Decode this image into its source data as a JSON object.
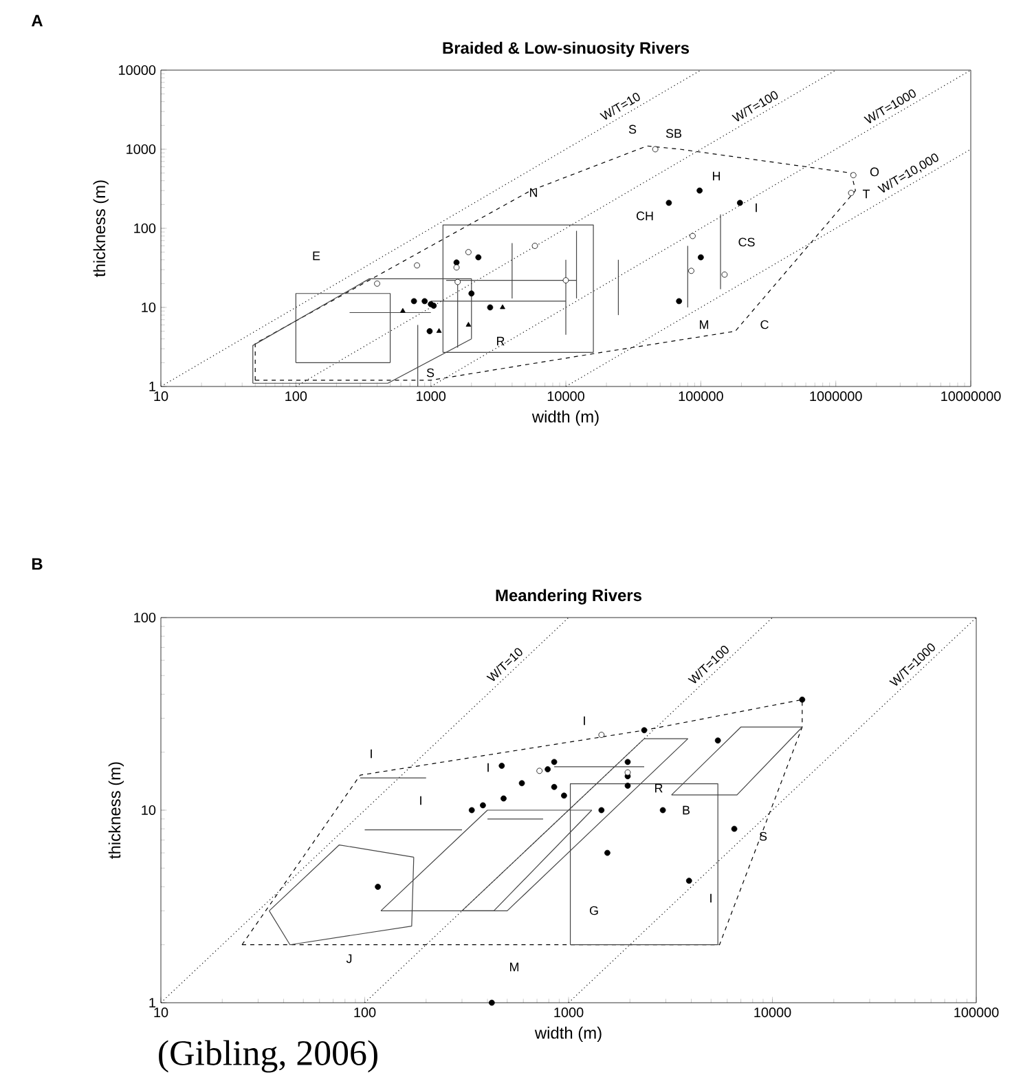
{
  "chart_data": [
    {
      "type": "scatter",
      "title": "Braided & Low-sinuosity Rivers",
      "xlabel": "width (m)",
      "ylabel": "thickness (m)",
      "log": "xy",
      "xlim": [
        10,
        10000000
      ],
      "ylim": [
        1,
        10000
      ],
      "xticks": [
        10,
        100,
        1000,
        10000,
        100000,
        1000000,
        10000000
      ],
      "yticks": [
        1,
        10,
        100,
        1000,
        10000
      ],
      "series": [
        {
          "marker": "circle",
          "color": "#000000",
          "x": [
            750,
            900,
            1000,
            1050,
            980,
            1550,
            2250,
            2000,
            2750,
            69000,
            100000,
            98000,
            58000,
            195000
          ],
          "values": [
            12,
            12,
            11,
            10.5,
            5,
            37,
            43,
            15,
            10,
            12,
            43,
            300,
            210,
            210
          ]
        },
        {
          "marker": "circle",
          "color": "#ffffff",
          "x": [
            400,
            790,
            1900,
            1550,
            1580,
            5900,
            87000,
            85000,
            150000,
            10000,
            46000,
            1350000,
            1300000
          ],
          "values": [
            20,
            34,
            50,
            32,
            21,
            60,
            80,
            29,
            26,
            22,
            1000,
            470,
            280
          ]
        },
        {
          "marker": "triangle",
          "color": "#000000",
          "x": [
            620,
            1150,
            1900,
            3400
          ],
          "values": [
            9,
            5,
            6,
            10
          ]
        },
        {
          "type": "line",
          "name": "W/T=10",
          "line_style": "dotted",
          "color": "#000000",
          "x": [
            10,
            100000
          ],
          "values": [
            1,
            10000
          ]
        },
        {
          "type": "line",
          "name": "W/T=100",
          "line_style": "dotted",
          "color": "#000000",
          "x": [
            100,
            1000000
          ],
          "values": [
            1,
            10000
          ]
        },
        {
          "type": "line",
          "name": "W/T=1000",
          "line_style": "dotted",
          "color": "#000000",
          "x": [
            1000,
            10000000
          ],
          "values": [
            1,
            10000
          ]
        },
        {
          "type": "line",
          "name": "W/T=10,000",
          "line_style": "dotted",
          "color": "#000000",
          "x": [
            10000,
            10000000
          ],
          "values": [
            1,
            1000
          ]
        },
        {
          "type": "line",
          "line_style": "dashed",
          "color": "#000000",
          "x": [
            50,
            50,
            5500,
            40000,
            70000,
            1300000,
            1400000
          ],
          "values": [
            1.2,
            3.5,
            300,
            1100,
            1000,
            500,
            300
          ]
        },
        {
          "type": "line",
          "line_style": "dashed",
          "color": "#000000",
          "x": [
            50,
            1000,
            16000,
            180000,
            1400000
          ],
          "values": [
            1.2,
            1.2,
            2.6,
            5,
            300
          ]
        },
        {
          "type": "line",
          "line_style": "solid",
          "color": "#444444",
          "x": [
            100,
            100,
            500,
            500
          ],
          "values": [
            2,
            15,
            15,
            2
          ]
        },
        {
          "type": "line",
          "line_style": "solid",
          "color": "#444444",
          "x": [
            100,
            500
          ],
          "values": [
            2,
            2
          ]
        },
        {
          "type": "line",
          "line_style": "solid",
          "color": "#444444",
          "x": [
            1230,
            1230,
            16000,
            16000
          ],
          "values": [
            2.7,
            110,
            110,
            2.7
          ]
        },
        {
          "type": "line",
          "line_style": "solid",
          "color": "#444444",
          "x": [
            1230,
            16000
          ],
          "values": [
            2.7,
            2.7
          ]
        },
        {
          "type": "line",
          "line_style": "solid",
          "color": "#444444",
          "x": [
            48,
            48,
            350,
            2000,
            2000
          ],
          "values": [
            1.1,
            3.3,
            23,
            23,
            4
          ]
        },
        {
          "type": "line",
          "line_style": "solid",
          "color": "#444444",
          "x": [
            48,
            480,
            2000
          ],
          "values": [
            1.1,
            1.1,
            4
          ]
        },
        {
          "type": "line",
          "line_style": "solid",
          "color": "#444444",
          "x": [
            250,
            1000
          ],
          "values": [
            8.6,
            8.6
          ]
        },
        {
          "type": "line",
          "line_style": "solid",
          "color": "#444444",
          "x": [
            1300,
            12000
          ],
          "values": [
            22,
            22
          ]
        },
        {
          "type": "line",
          "line_style": "solid",
          "color": "#444444",
          "x": [
            1000,
            10000
          ],
          "values": [
            12,
            12
          ]
        },
        {
          "type": "line",
          "line_style": "solid",
          "color": "#444444",
          "x": [
            24500,
            24500
          ],
          "values": [
            8,
            40
          ]
        },
        {
          "type": "line",
          "line_style": "solid",
          "color": "#444444",
          "x": [
            140000,
            140000
          ],
          "values": [
            17,
            150
          ]
        },
        {
          "type": "line",
          "line_style": "solid",
          "color": "#444444",
          "x": [
            80000,
            80000
          ],
          "values": [
            10,
            60
          ]
        },
        {
          "type": "line",
          "line_style": "solid",
          "color": "#444444",
          "x": [
            10000,
            10000
          ],
          "values": [
            4.5,
            40
          ]
        },
        {
          "type": "line",
          "line_style": "solid",
          "color": "#444444",
          "x": [
            4000,
            4000
          ],
          "values": [
            13,
            65
          ]
        },
        {
          "type": "line",
          "line_style": "solid",
          "color": "#444444",
          "x": [
            800,
            800
          ],
          "values": [
            1,
            6
          ]
        },
        {
          "type": "line",
          "line_style": "solid",
          "color": "#444444",
          "x": [
            1580,
            1580
          ],
          "values": [
            3.1,
            21
          ]
        },
        {
          "type": "line",
          "line_style": "solid",
          "color": "#444444",
          "x": [
            12000,
            12000
          ],
          "values": [
            13,
            93
          ]
        }
      ],
      "annotations": [
        "A",
        "E",
        "N",
        "S",
        "SB",
        "H",
        "CH",
        "I",
        "CS",
        "M",
        "C",
        "O",
        "T",
        "R",
        "S"
      ]
    },
    {
      "type": "scatter",
      "title": "Meandering Rivers",
      "xlabel": "width (m)",
      "ylabel": "thickness (m)",
      "log": "xy",
      "xlim": [
        10,
        100000
      ],
      "ylim": [
        1,
        100
      ],
      "xticks": [
        10,
        100,
        1000,
        10000,
        100000
      ],
      "yticks": [
        1,
        10,
        100
      ],
      "series": [
        {
          "marker": "circle",
          "color": "#000000",
          "x": [
            116,
            335,
            380,
            480,
            590,
            850,
            950,
            1450,
            1550,
            1950,
            1950,
            2900,
            6500,
            3900,
            420,
            14000,
            2350,
            5400,
            470,
            850,
            790,
            1950
          ],
          "values": [
            4,
            10,
            10.6,
            11.5,
            13.8,
            13.2,
            11.9,
            10,
            6,
            15,
            13.4,
            10,
            8,
            4.3,
            1,
            37.5,
            26,
            23,
            17,
            17.8,
            16.3,
            17.8
          ]
        },
        {
          "marker": "circle",
          "color": "#ffffff",
          "x": [
            720,
            1450,
            1950
          ],
          "values": [
            16,
            24.6,
            15.7
          ]
        },
        {
          "type": "line",
          "name": "W/T=10",
          "line_style": "dotted",
          "color": "#000000",
          "x": [
            10,
            1000
          ],
          "values": [
            1,
            100
          ]
        },
        {
          "type": "line",
          "name": "W/T=100",
          "line_style": "dotted",
          "color": "#000000",
          "x": [
            100,
            10000
          ],
          "values": [
            1,
            100
          ]
        },
        {
          "type": "line",
          "name": "W/T=1000",
          "line_style": "dotted",
          "color": "#000000",
          "x": [
            1000,
            100000
          ],
          "values": [
            1,
            100
          ]
        },
        {
          "type": "line",
          "line_style": "dashed",
          "color": "#000000",
          "x": [
            25,
            5500,
            14000,
            14000
          ],
          "values": [
            2,
            2,
            27,
            37.5
          ]
        },
        {
          "type": "line",
          "line_style": "dashed",
          "color": "#000000",
          "x": [
            25,
            95,
            2350,
            14000
          ],
          "values": [
            2,
            15.2,
            26,
            37.5
          ]
        },
        {
          "type": "line",
          "line_style": "solid",
          "color": "#444444",
          "x": [
            1020,
            1020,
            5400,
            5400
          ],
          "values": [
            2,
            13.7,
            13.7,
            2
          ]
        },
        {
          "type": "line",
          "line_style": "solid",
          "color": "#444444",
          "x": [
            1020,
            5400
          ],
          "values": [
            2,
            2
          ]
        },
        {
          "type": "line",
          "line_style": "solid",
          "color": "#444444",
          "x": [
            34,
            75,
            174
          ],
          "values": [
            3,
            6.6,
            5.7
          ]
        },
        {
          "type": "line",
          "line_style": "solid",
          "color": "#444444",
          "x": [
            34,
            43,
            170,
            174
          ],
          "values": [
            3,
            2,
            2.5,
            5.7
          ]
        },
        {
          "type": "line",
          "line_style": "solid",
          "color": "#444444",
          "x": [
            120,
            400,
            1300
          ],
          "values": [
            3,
            10,
            10
          ]
        },
        {
          "type": "line",
          "line_style": "solid",
          "color": "#444444",
          "x": [
            120,
            430,
            1300
          ],
          "values": [
            3,
            3,
            10
          ]
        },
        {
          "type": "line",
          "line_style": "solid",
          "color": "#444444",
          "x": [
            300,
            2350,
            3850
          ],
          "values": [
            3,
            23.5,
            23.5
          ]
        },
        {
          "type": "line",
          "line_style": "solid",
          "color": "#444444",
          "x": [
            300,
            500,
            3850
          ],
          "values": [
            3,
            3,
            23.5
          ]
        },
        {
          "type": "line",
          "line_style": "solid",
          "color": "#444444",
          "x": [
            3200,
            7000,
            14000
          ],
          "values": [
            12,
            27,
            27
          ]
        },
        {
          "type": "line",
          "line_style": "solid",
          "color": "#444444",
          "x": [
            3200,
            6700,
            14000
          ],
          "values": [
            12,
            12,
            27
          ]
        },
        {
          "type": "line",
          "line_style": "solid",
          "color": "#444444",
          "x": [
            100,
            300
          ],
          "values": [
            7.9,
            7.9
          ]
        },
        {
          "type": "line",
          "line_style": "solid",
          "color": "#444444",
          "x": [
            400,
            750
          ],
          "values": [
            9,
            9
          ]
        },
        {
          "type": "line",
          "line_style": "solid",
          "color": "#444444",
          "x": [
            95,
            200
          ],
          "values": [
            14.7,
            14.7
          ]
        },
        {
          "type": "line",
          "line_style": "solid",
          "color": "#444444",
          "x": [
            850,
            2350
          ],
          "values": [
            16.8,
            16.8
          ]
        }
      ],
      "annotations": [
        "B",
        "(Gibling, 2006)",
        "I",
        "I",
        "I",
        "I",
        "R",
        "B",
        "S",
        "I",
        "G",
        "J",
        "M"
      ]
    }
  ]
}
